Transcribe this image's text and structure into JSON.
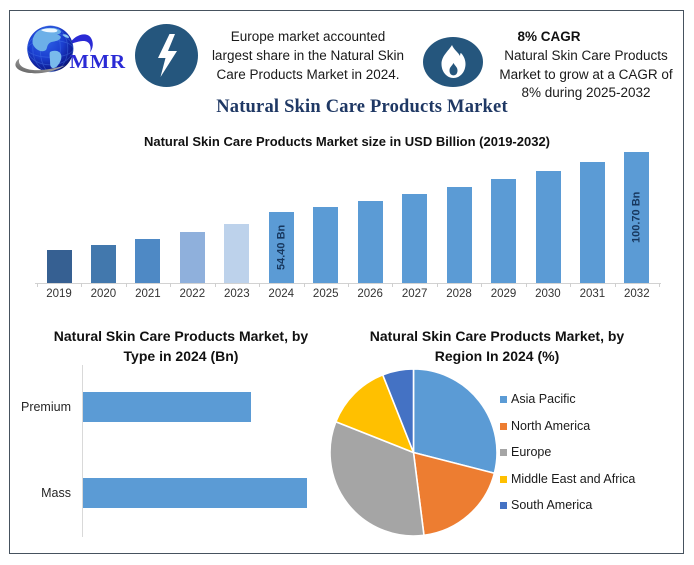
{
  "header": {
    "logo_text": "MMR",
    "main_title": "Natural Skin Care Products Market",
    "callout_europe": {
      "lines": [
        "Europe market accounted",
        "largest share in the Natural Skin",
        "Care Products Market in 2024."
      ]
    },
    "callout_cagr": {
      "heading": "8% CAGR",
      "lines": [
        "Natural Skin Care Products",
        "Market to grow at a CAGR of",
        "8% during 2025-2032"
      ]
    }
  },
  "colors": {
    "icon_circle": "#25567d",
    "title_navy": "#1f3864",
    "logo_blue": "#2b2bd0",
    "border": "#46525e",
    "bar_blue": "#5b9bd5",
    "value_label_navy": "#17375e"
  },
  "chart_data": [
    {
      "type": "bar",
      "title": "Natural Skin Care Products Market size in USD Billion (2019-2032)",
      "categories": [
        "2019",
        "2020",
        "2021",
        "2022",
        "2023",
        "2024",
        "2025",
        "2026",
        "2027",
        "2028",
        "2029",
        "2030",
        "2031",
        "2032"
      ],
      "values": [
        25.4,
        29.6,
        33.6,
        39.0,
        45.0,
        54.4,
        58.75,
        63.45,
        68.53,
        74.01,
        79.93,
        86.33,
        93.23,
        100.7
      ],
      "unit": "USD Billion",
      "ylim": [
        0,
        110
      ],
      "grid": false,
      "data_labels": {
        "2024": "54.40 Bn",
        "2032": "100.70 Bn"
      },
      "bar_colors": [
        "#366092",
        "#4278ad",
        "#4e89c5",
        "#8fb0dc",
        "#bdd2eb",
        "#5b9bd5",
        "#5b9bd5",
        "#5b9bd5",
        "#5b9bd5",
        "#5b9bd5",
        "#5b9bd5",
        "#5b9bd5",
        "#5b9bd5",
        "#5b9bd5"
      ]
    },
    {
      "type": "bar",
      "orientation": "horizontal",
      "title_lines": [
        "Natural Skin Care Products Market, by",
        "Type in 2024 (Bn)"
      ],
      "categories": [
        "Premium",
        "Mass"
      ],
      "values": [
        23.3,
        31.1
      ],
      "unit": "Bn",
      "bar_color": "#5b9bd5",
      "grid": false
    },
    {
      "type": "pie",
      "title_lines": [
        "Natural Skin Care Products Market, by",
        "Region In 2024 (%)"
      ],
      "labels": [
        "Asia Pacific",
        "North America",
        "Europe",
        "Middle East and Africa",
        "South America"
      ],
      "values": [
        29,
        19,
        33,
        13,
        6
      ],
      "unit": "%",
      "colors": [
        "#5b9bd5",
        "#ed7d31",
        "#a5a5a5",
        "#ffc000",
        "#4472c4"
      ],
      "legend_position": "right"
    }
  ]
}
